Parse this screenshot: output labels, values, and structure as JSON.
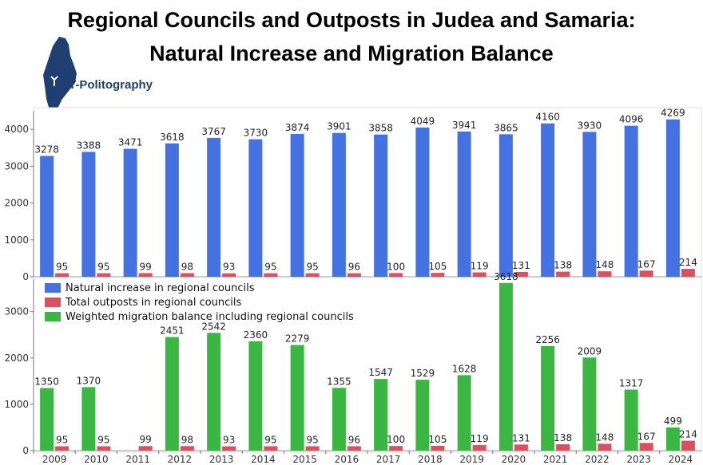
{
  "header": {
    "title_line1": "Regional Councils and Outposts in Judea and Samaria:",
    "title_line2": "Natural Increase and Migration Balance",
    "logo_text": "T-Politography"
  },
  "colors": {
    "natural": "#4472e0",
    "outposts": "#d9505e",
    "migration": "#3cb643",
    "logo": "#1f3e72"
  },
  "legend": {
    "position": "top-left of lower panel",
    "items": [
      {
        "label": "Natural increase in regional councils",
        "color": "#4472e0"
      },
      {
        "label": "Total outposts in regional councils",
        "color": "#d9505e"
      },
      {
        "label": "Weighted migration balance including regional councils",
        "color": "#3cb643"
      }
    ]
  },
  "chart_data": [
    {
      "type": "bar",
      "categories": [
        "2009",
        "2010",
        "2011",
        "2012",
        "2013",
        "2014",
        "2015",
        "2016",
        "2017",
        "2018",
        "2019",
        "2020",
        "2021",
        "2022",
        "2023",
        "2024"
      ],
      "series": [
        {
          "name": "Natural increase in regional councils",
          "values": [
            3278,
            3388,
            3471,
            3618,
            3767,
            3730,
            3874,
            3901,
            3858,
            4049,
            3941,
            3865,
            4160,
            3930,
            4096,
            4269
          ]
        },
        {
          "name": "Total outposts in regional councils",
          "values": [
            95,
            95,
            99,
            98,
            93,
            95,
            95,
            96,
            100,
            105,
            119,
            131,
            138,
            148,
            167,
            214
          ]
        }
      ],
      "yticks": [
        0,
        1000,
        2000,
        3000,
        4000
      ],
      "ylim": [
        0,
        4500
      ],
      "grid": false
    },
    {
      "type": "bar",
      "categories": [
        "2009",
        "2010",
        "2011",
        "2012",
        "2013",
        "2014",
        "2015",
        "2016",
        "2017",
        "2018",
        "2019",
        "2020",
        "2021",
        "2022",
        "2023",
        "2024"
      ],
      "series": [
        {
          "name": "Weighted migration balance including regional councils",
          "values": [
            1350,
            1370,
            null,
            2451,
            2542,
            2360,
            2279,
            1355,
            1547,
            1529,
            1628,
            3618,
            2256,
            2009,
            1317,
            499
          ]
        },
        {
          "name": "Total outposts in regional councils",
          "values": [
            95,
            95,
            99,
            98,
            93,
            95,
            95,
            96,
            100,
            105,
            119,
            131,
            138,
            148,
            167,
            214
          ]
        }
      ],
      "yticks": [
        0,
        1000,
        2000,
        3000
      ],
      "ylim": [
        0,
        3700
      ],
      "grid": false
    }
  ]
}
